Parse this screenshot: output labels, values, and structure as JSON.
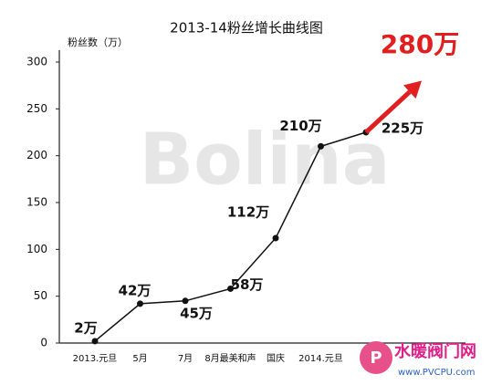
{
  "chart_data": {
    "type": "line",
    "title": "2013-14粉丝增长曲线图",
    "y_label": "粉丝数（万）",
    "categories": [
      "2013.元旦",
      "5月",
      "7月",
      "8月最美和声",
      "国庆",
      "2014.元旦",
      null
    ],
    "values": [
      2,
      42,
      45,
      58,
      112,
      210,
      225
    ],
    "value_labels": [
      "2万",
      "42万",
      "45万",
      "58万",
      "112万",
      "210万",
      "225万"
    ],
    "color": "#111111",
    "ylim": [
      0,
      300
    ],
    "yticks": [
      0,
      50,
      100,
      150,
      200,
      250,
      300
    ],
    "grid": false,
    "projection": {
      "value": 280,
      "label": "280万",
      "color": "#e02020"
    },
    "watermark": "Bolina",
    "logo": {
      "name": "水暖阀门网",
      "url": "www.PVCPU.com"
    }
  }
}
